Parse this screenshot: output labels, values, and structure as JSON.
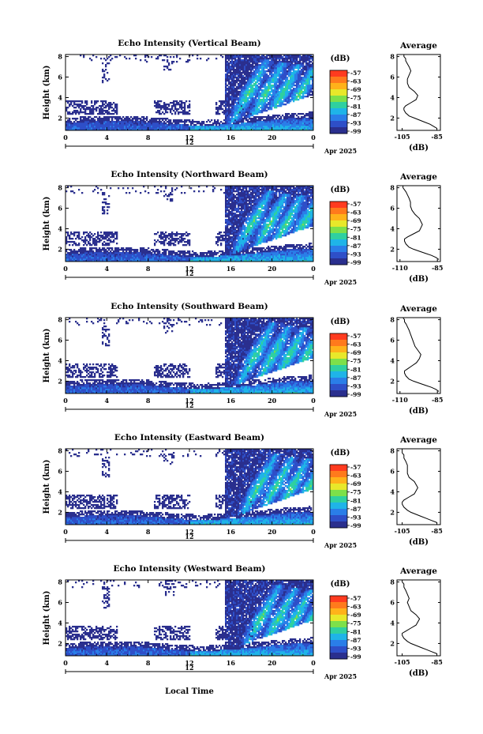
{
  "figure": {
    "xlabel": "Local Time",
    "date_label": "Apr 2025",
    "day_marker": "12",
    "colorbar_unit": "(dB)",
    "average_title": "Average",
    "average_xlabel": "(dB)"
  },
  "colorbar": {
    "ticks": [
      "-57",
      "-63",
      "-69",
      "-75",
      "-81",
      "-87",
      "-93",
      "-99"
    ],
    "colors": [
      "#ff3b1f",
      "#ff7a1c",
      "#ffb21a",
      "#e8e82a",
      "#7de04a",
      "#2fd0a0",
      "#1fb4e8",
      "#2a7ee8",
      "#2e4fc8",
      "#2a2f8e"
    ]
  },
  "chart_data": [
    {
      "type": "heatmap",
      "title": "Echo Intensity (Vertical Beam)",
      "ylabel": "Height (km)",
      "x_ticks": [
        "0",
        "4",
        "8",
        "12",
        "16",
        "20",
        "0"
      ],
      "xlim": [
        0,
        24
      ],
      "y_ticks": [
        "2",
        "4",
        "6",
        "8"
      ],
      "ylim": [
        0.8,
        8.2
      ],
      "zlim": [
        -99,
        -57
      ],
      "average": {
        "type": "line",
        "x_ticks": [
          "-105",
          "-85"
        ],
        "xlim": [
          -108,
          -83
        ],
        "y_ticks": [
          "2",
          "4",
          "6",
          "8"
        ],
        "ylim": [
          0.8,
          8.2
        ],
        "x": [
          -85,
          -87,
          -89,
          -92,
          -95,
          -98,
          -101,
          -103,
          -104,
          -104,
          -103,
          -100,
          -97,
          -96,
          -98,
          -101,
          -102,
          -102,
          -101,
          -100,
          -101,
          -102,
          -103,
          -103,
          -104,
          -104
        ],
        "y": [
          1.0,
          1.2,
          1.4,
          1.6,
          1.8,
          2.0,
          2.2,
          2.5,
          2.8,
          3.0,
          3.2,
          3.5,
          3.8,
          4.2,
          4.6,
          5.0,
          5.4,
          5.8,
          6.2,
          6.6,
          7.0,
          7.3,
          7.6,
          7.8,
          8.0,
          8.2
        ]
      }
    },
    {
      "type": "heatmap",
      "title": "Echo Intensity (Northward Beam)",
      "ylabel": "Height (km)",
      "x_ticks": [
        "0",
        "4",
        "8",
        "12",
        "16",
        "20",
        "0"
      ],
      "xlim": [
        0,
        24
      ],
      "y_ticks": [
        "2",
        "4",
        "6",
        "8"
      ],
      "ylim": [
        0.8,
        8.2
      ],
      "zlim": [
        -99,
        -57
      ],
      "average": {
        "type": "line",
        "x_ticks": [
          "-110",
          "-85"
        ],
        "xlim": [
          -112,
          -83
        ],
        "y_ticks": [
          "2",
          "4",
          "6",
          "8"
        ],
        "ylim": [
          0.8,
          8.2
        ],
        "x": [
          -84,
          -86,
          -89,
          -93,
          -97,
          -101,
          -104,
          -106,
          -107,
          -107,
          -105,
          -101,
          -97,
          -95,
          -97,
          -100,
          -102,
          -103,
          -103,
          -104,
          -105,
          -106,
          -107,
          -108,
          -108,
          -108
        ],
        "y": [
          1.0,
          1.2,
          1.4,
          1.6,
          1.8,
          2.0,
          2.2,
          2.5,
          2.8,
          3.0,
          3.2,
          3.5,
          3.8,
          4.4,
          5.0,
          5.4,
          5.8,
          6.2,
          6.6,
          7.0,
          7.3,
          7.6,
          7.8,
          8.0,
          8.1,
          8.2
        ]
      }
    },
    {
      "type": "heatmap",
      "title": "Echo Intensity (Southward Beam)",
      "ylabel": "Height (km)",
      "x_ticks": [
        "0",
        "4",
        "8",
        "12",
        "16",
        "20",
        "0"
      ],
      "xlim": [
        0,
        24
      ],
      "y_ticks": [
        "2",
        "4",
        "6",
        "8"
      ],
      "ylim": [
        0.8,
        8.2
      ],
      "zlim": [
        -99,
        -57
      ],
      "average": {
        "type": "line",
        "x_ticks": [
          "-110",
          "-85"
        ],
        "xlim": [
          -112,
          -83
        ],
        "y_ticks": [
          "2",
          "4",
          "6",
          "8"
        ],
        "ylim": [
          0.8,
          8.2
        ],
        "x": [
          -84,
          -86,
          -89,
          -93,
          -97,
          -101,
          -104,
          -106,
          -107,
          -107,
          -105,
          -102,
          -99,
          -97,
          -96,
          -98,
          -100,
          -101,
          -102,
          -103,
          -104,
          -105,
          -106,
          -107,
          -107,
          -108
        ],
        "y": [
          1.0,
          1.2,
          1.4,
          1.6,
          1.8,
          2.0,
          2.2,
          2.5,
          2.8,
          3.0,
          3.2,
          3.5,
          3.8,
          4.2,
          4.6,
          5.0,
          5.4,
          5.8,
          6.2,
          6.6,
          7.0,
          7.3,
          7.6,
          7.8,
          8.0,
          8.2
        ]
      }
    },
    {
      "type": "heatmap",
      "title": "Echo Intensity (Eastward Beam)",
      "ylabel": "Height (km)",
      "x_ticks": [
        "0",
        "4",
        "8",
        "12",
        "16",
        "20",
        "0"
      ],
      "xlim": [
        0,
        24
      ],
      "y_ticks": [
        "2",
        "4",
        "6",
        "8"
      ],
      "ylim": [
        0.8,
        8.2
      ],
      "zlim": [
        -99,
        -57
      ],
      "average": {
        "type": "line",
        "x_ticks": [
          "-105",
          "-85"
        ],
        "xlim": [
          -108,
          -83
        ],
        "y_ticks": [
          "2",
          "4",
          "6",
          "8"
        ],
        "ylim": [
          0.8,
          8.2
        ],
        "x": [
          -85,
          -88,
          -91,
          -94,
          -97,
          -100,
          -102,
          -104,
          -105,
          -105,
          -104,
          -101,
          -98,
          -96,
          -98,
          -101,
          -102,
          -102,
          -102,
          -103,
          -104,
          -104,
          -105,
          -105,
          -105,
          -105
        ],
        "y": [
          1.0,
          1.2,
          1.4,
          1.6,
          1.8,
          2.0,
          2.2,
          2.5,
          2.8,
          3.0,
          3.2,
          3.5,
          3.8,
          4.4,
          5.0,
          5.4,
          5.8,
          6.2,
          6.6,
          7.0,
          7.3,
          7.6,
          7.8,
          8.0,
          8.1,
          8.2
        ]
      }
    },
    {
      "type": "heatmap",
      "title": "Echo Intensity (Westward Beam)",
      "ylabel": "Height (km)",
      "x_ticks": [
        "0",
        "4",
        "8",
        "12",
        "16",
        "20",
        "0"
      ],
      "xlim": [
        0,
        24
      ],
      "y_ticks": [
        "2",
        "4",
        "6",
        "8"
      ],
      "ylim": [
        0.8,
        8.2
      ],
      "zlim": [
        -99,
        -57
      ],
      "average": {
        "type": "line",
        "x_ticks": [
          "-105",
          "-85"
        ],
        "xlim": [
          -108,
          -83
        ],
        "y_ticks": [
          "2",
          "4",
          "6",
          "8"
        ],
        "ylim": [
          0.8,
          8.2
        ],
        "x": [
          -85,
          -88,
          -91,
          -94,
          -97,
          -100,
          -102,
          -104,
          -105,
          -105,
          -103,
          -100,
          -97,
          -95,
          -97,
          -100,
          -101,
          -102,
          -101,
          -102,
          -103,
          -104,
          -104,
          -105,
          -105,
          -105
        ],
        "y": [
          1.0,
          1.2,
          1.4,
          1.6,
          1.8,
          2.0,
          2.2,
          2.5,
          2.8,
          3.0,
          3.2,
          3.5,
          3.8,
          4.4,
          4.8,
          5.2,
          5.6,
          6.0,
          6.4,
          6.8,
          7.2,
          7.5,
          7.8,
          8.0,
          8.1,
          8.2
        ]
      }
    }
  ]
}
